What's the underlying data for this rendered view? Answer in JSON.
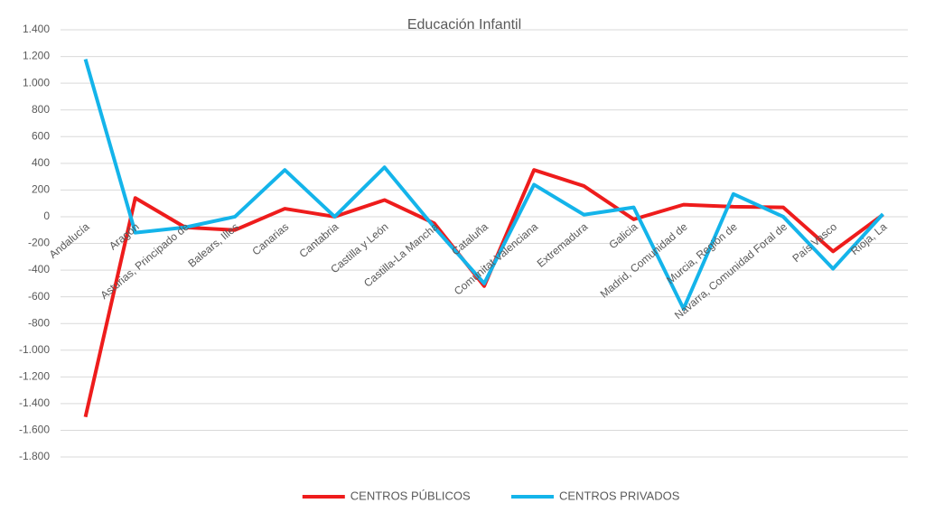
{
  "chart_data": {
    "type": "line",
    "title": "Educación Infantil",
    "categories": [
      "Andalucía",
      "Aragón",
      "Asturias, Principado de",
      "Balears, Illes",
      "Canarias",
      "Cantabria",
      "Castilla y León",
      "Castilla-La Mancha",
      "Cataluña",
      "Comunitat Valenciana",
      "Extremadura",
      "Galicia",
      "Madrid, Comunidad de",
      "Murcia, Región de",
      "Navarra, Comunidad Foral de",
      "País Vasco",
      "Rioja, La"
    ],
    "series": [
      {
        "name": "CENTROS PÚBLICOS",
        "color": "#ee1c1c",
        "values": [
          -1500,
          140,
          -80,
          -100,
          60,
          0,
          125,
          -50,
          -520,
          350,
          230,
          -20,
          90,
          75,
          70,
          -260,
          15
        ]
      },
      {
        "name": "CENTROS PRIVADOS",
        "color": "#14b4ea",
        "values": [
          1180,
          -120,
          -80,
          0,
          350,
          0,
          370,
          -80,
          -500,
          240,
          15,
          70,
          -690,
          170,
          0,
          -390,
          20
        ]
      }
    ],
    "ylim": [
      -1800,
      1400
    ],
    "yticks": [
      {
        "value": -1800,
        "label": "-1.800"
      },
      {
        "value": -1600,
        "label": "-1.600"
      },
      {
        "value": -1400,
        "label": "-1.400"
      },
      {
        "value": -1200,
        "label": "-1.200"
      },
      {
        "value": -1000,
        "label": "-1.000"
      },
      -800,
      -600,
      -400,
      -200,
      0,
      200,
      400,
      600,
      800,
      {
        "value": 1000,
        "label": "1.000"
      },
      {
        "value": 1200,
        "label": "1.200"
      },
      {
        "value": 1400,
        "label": "1.400"
      }
    ],
    "grid": true,
    "legend": "bottom"
  }
}
